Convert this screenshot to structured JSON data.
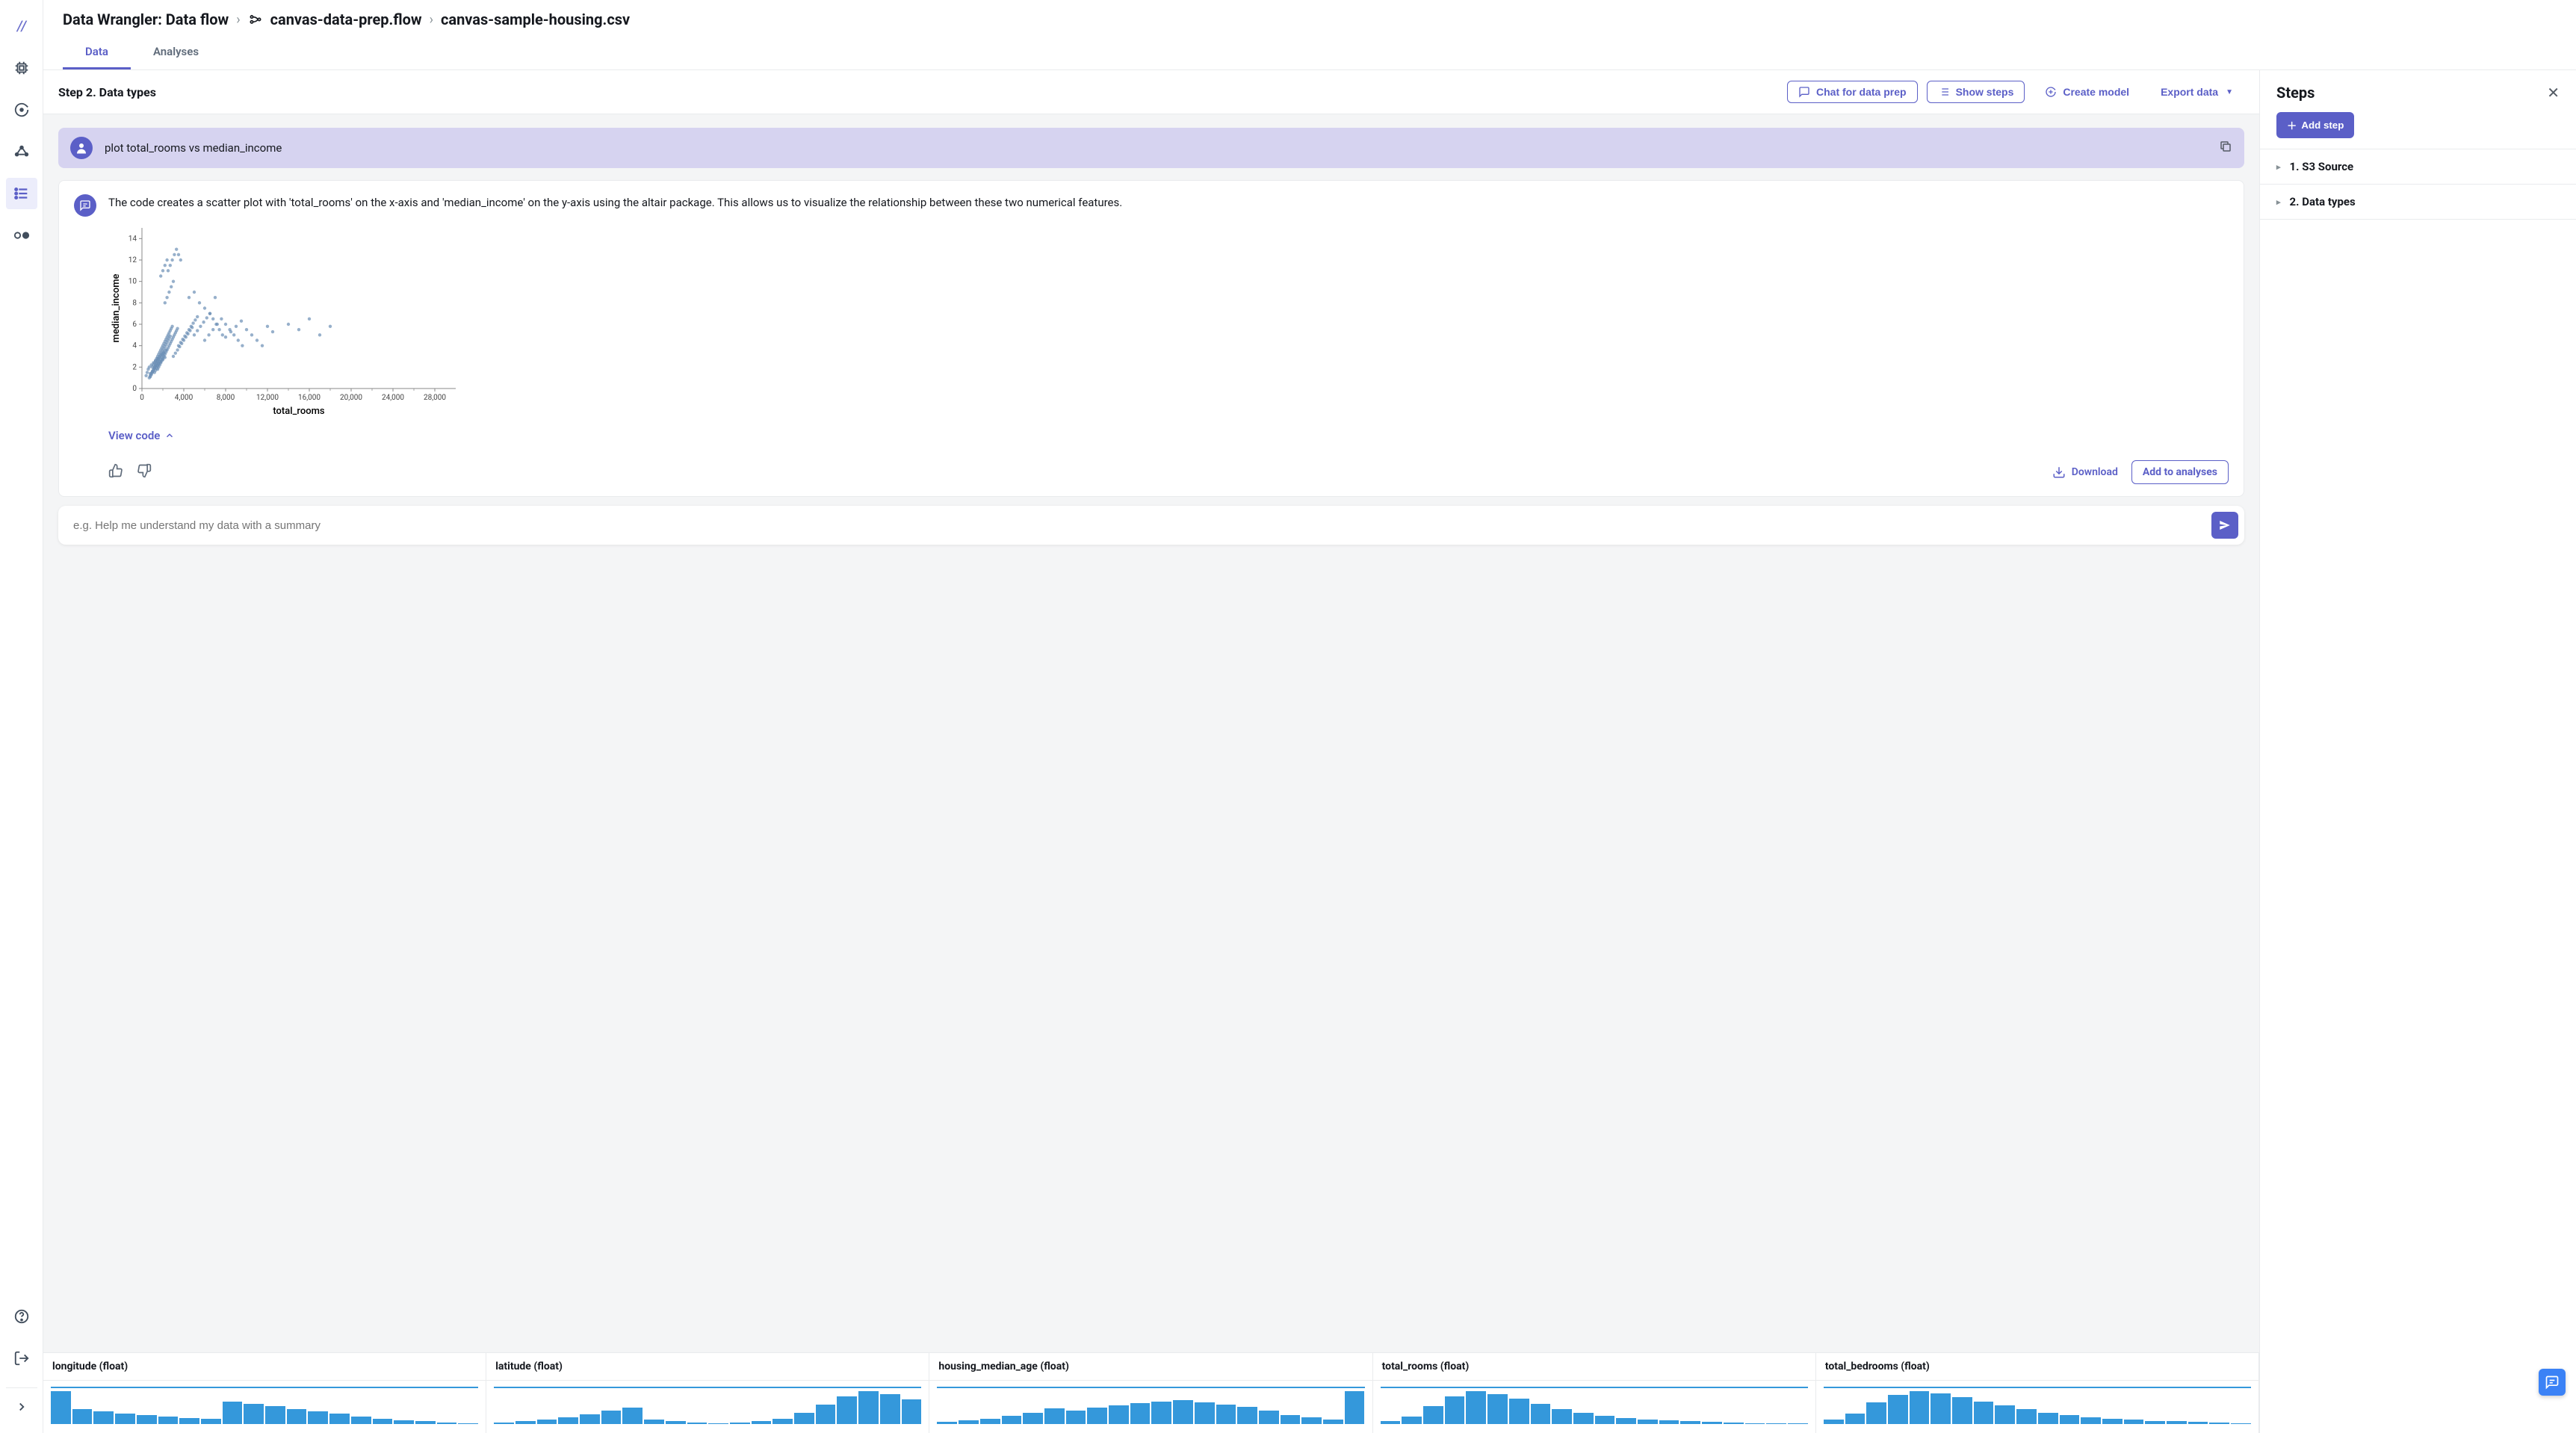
{
  "breadcrumb": {
    "root": "Data Wrangler: Data flow",
    "flow": "canvas-data-prep.flow",
    "file": "canvas-sample-housing.csv"
  },
  "tabs": {
    "data": "Data",
    "analyses": "Analyses"
  },
  "toolbar": {
    "step_title": "Step 2. Data types",
    "chat": "Chat for data prep",
    "show_steps": "Show steps",
    "create_model": "Create model",
    "export": "Export data"
  },
  "chat": {
    "user_msg": "plot total_rooms vs median_income",
    "assistant_msg": "The code creates a scatter plot with 'total_rooms' on the x-axis and 'median_income' on the y-axis using the altair package. This allows us to visualize the relationship between these two numerical features.",
    "view_code": "View code",
    "download": "Download",
    "add_to_analyses": "Add to analyses",
    "placeholder": "e.g. Help me understand my data with a summary"
  },
  "scatter_chart": {
    "type": "scatter",
    "xlabel": "total_rooms",
    "ylabel": "median_income",
    "xlim": [
      0,
      30000
    ],
    "ylim": [
      0,
      15
    ],
    "xticks": [
      0,
      4000,
      8000,
      12000,
      16000,
      20000,
      24000,
      28000
    ],
    "yticks": [
      0,
      2,
      4,
      6,
      8,
      10,
      12,
      14
    ],
    "point_color": "#6b8fb5",
    "point_opacity": 0.7,
    "point_radius": 2.2,
    "background": "#ffffff",
    "points": [
      [
        400,
        1.2
      ],
      [
        500,
        1.5
      ],
      [
        600,
        1.8
      ],
      [
        700,
        2.0
      ],
      [
        800,
        1.4
      ],
      [
        900,
        2.2
      ],
      [
        1000,
        1.6
      ],
      [
        1100,
        2.4
      ],
      [
        1200,
        1.9
      ],
      [
        1300,
        2.6
      ],
      [
        1400,
        2.1
      ],
      [
        1500,
        2.8
      ],
      [
        1600,
        2.3
      ],
      [
        1700,
        3.0
      ],
      [
        1800,
        2.5
      ],
      [
        1900,
        3.2
      ],
      [
        2000,
        2.7
      ],
      [
        2100,
        3.4
      ],
      [
        2200,
        2.9
      ],
      [
        2300,
        3.6
      ],
      [
        800,
        1.1
      ],
      [
        900,
        1.3
      ],
      [
        1000,
        1.5
      ],
      [
        1100,
        1.7
      ],
      [
        1200,
        1.9
      ],
      [
        1300,
        2.1
      ],
      [
        1400,
        2.3
      ],
      [
        1500,
        2.5
      ],
      [
        1600,
        2.7
      ],
      [
        1700,
        2.9
      ],
      [
        1800,
        3.1
      ],
      [
        1900,
        3.3
      ],
      [
        2000,
        3.5
      ],
      [
        2100,
        3.7
      ],
      [
        2200,
        3.9
      ],
      [
        2300,
        4.1
      ],
      [
        2400,
        4.3
      ],
      [
        2500,
        4.5
      ],
      [
        2600,
        4.7
      ],
      [
        2700,
        4.9
      ],
      [
        1000,
        2.0
      ],
      [
        1100,
        2.2
      ],
      [
        1200,
        2.4
      ],
      [
        1300,
        2.6
      ],
      [
        1400,
        2.8
      ],
      [
        1500,
        3.0
      ],
      [
        1600,
        3.2
      ],
      [
        1700,
        3.4
      ],
      [
        1800,
        3.6
      ],
      [
        1900,
        3.8
      ],
      [
        2000,
        4.0
      ],
      [
        2100,
        4.2
      ],
      [
        2200,
        4.4
      ],
      [
        2300,
        4.6
      ],
      [
        2400,
        4.8
      ],
      [
        2500,
        5.0
      ],
      [
        2600,
        5.2
      ],
      [
        2700,
        5.4
      ],
      [
        2800,
        5.6
      ],
      [
        2900,
        5.8
      ],
      [
        700,
        1.0
      ],
      [
        800,
        1.2
      ],
      [
        900,
        1.4
      ],
      [
        1000,
        1.6
      ],
      [
        1100,
        1.8
      ],
      [
        1200,
        2.0
      ],
      [
        1300,
        2.2
      ],
      [
        1400,
        2.4
      ],
      [
        1500,
        2.6
      ],
      [
        1600,
        2.8
      ],
      [
        1200,
        1.5
      ],
      [
        1300,
        1.7
      ],
      [
        1400,
        1.9
      ],
      [
        1500,
        2.1
      ],
      [
        1600,
        2.3
      ],
      [
        1700,
        2.5
      ],
      [
        1800,
        2.7
      ],
      [
        1900,
        2.9
      ],
      [
        2000,
        3.1
      ],
      [
        2100,
        3.3
      ],
      [
        1500,
        1.8
      ],
      [
        1600,
        2.0
      ],
      [
        1700,
        2.2
      ],
      [
        1800,
        2.4
      ],
      [
        1900,
        2.6
      ],
      [
        2000,
        2.8
      ],
      [
        2100,
        3.0
      ],
      [
        2200,
        3.2
      ],
      [
        2300,
        3.4
      ],
      [
        2400,
        3.6
      ],
      [
        2500,
        3.8
      ],
      [
        2600,
        4.0
      ],
      [
        2700,
        4.2
      ],
      [
        2800,
        4.4
      ],
      [
        2900,
        4.6
      ],
      [
        3000,
        4.8
      ],
      [
        3100,
        5.0
      ],
      [
        3200,
        5.2
      ],
      [
        3300,
        5.4
      ],
      [
        3400,
        5.6
      ],
      [
        3000,
        3.0
      ],
      [
        3200,
        3.3
      ],
      [
        3400,
        3.6
      ],
      [
        3600,
        3.9
      ],
      [
        3800,
        4.2
      ],
      [
        4000,
        4.5
      ],
      [
        4200,
        4.8
      ],
      [
        4400,
        5.1
      ],
      [
        4600,
        5.4
      ],
      [
        4800,
        5.7
      ],
      [
        3500,
        4.0
      ],
      [
        3700,
        4.3
      ],
      [
        3900,
        4.6
      ],
      [
        4100,
        4.9
      ],
      [
        4300,
        5.2
      ],
      [
        4500,
        5.5
      ],
      [
        4700,
        5.8
      ],
      [
        4900,
        6.1
      ],
      [
        5100,
        6.4
      ],
      [
        5300,
        6.7
      ],
      [
        5000,
        5.0
      ],
      [
        5300,
        5.4
      ],
      [
        5600,
        5.8
      ],
      [
        5900,
        6.2
      ],
      [
        6200,
        6.6
      ],
      [
        6500,
        7.0
      ],
      [
        6800,
        6.5
      ],
      [
        7100,
        6.0
      ],
      [
        7400,
        5.5
      ],
      [
        7700,
        5.0
      ],
      [
        6000,
        4.5
      ],
      [
        6400,
        5.0
      ],
      [
        6800,
        5.5
      ],
      [
        7200,
        6.0
      ],
      [
        7600,
        6.5
      ],
      [
        8000,
        6.0
      ],
      [
        8400,
        5.5
      ],
      [
        8800,
        5.0
      ],
      [
        9200,
        4.5
      ],
      [
        9600,
        4.0
      ],
      [
        8000,
        4.8
      ],
      [
        8500,
        5.3
      ],
      [
        9000,
        5.8
      ],
      [
        9500,
        6.3
      ],
      [
        10000,
        5.5
      ],
      [
        10500,
        5.0
      ],
      [
        11000,
        4.5
      ],
      [
        11500,
        4.0
      ],
      [
        12000,
        5.8
      ],
      [
        12500,
        5.3
      ],
      [
        2200,
        8.0
      ],
      [
        2400,
        8.5
      ],
      [
        2600,
        9.0
      ],
      [
        2800,
        9.5
      ],
      [
        3000,
        10.0
      ],
      [
        2500,
        11.0
      ],
      [
        2700,
        11.5
      ],
      [
        2900,
        12.0
      ],
      [
        3100,
        12.5
      ],
      [
        3300,
        13.0
      ],
      [
        1800,
        10.5
      ],
      [
        2000,
        11.0
      ],
      [
        2200,
        11.5
      ],
      [
        2400,
        12.0
      ],
      [
        3500,
        12.5
      ],
      [
        3700,
        12.0
      ],
      [
        4500,
        8.5
      ],
      [
        5000,
        9.0
      ],
      [
        5500,
        8.0
      ],
      [
        6000,
        7.5
      ],
      [
        6500,
        7.0
      ],
      [
        7000,
        8.5
      ],
      [
        14000,
        6.0
      ],
      [
        15000,
        5.5
      ],
      [
        16000,
        6.5
      ],
      [
        17000,
        5.0
      ],
      [
        18000,
        5.8
      ]
    ]
  },
  "columns": [
    {
      "name": "longitude (float)",
      "hist": [
        65,
        30,
        25,
        20,
        18,
        15,
        12,
        10,
        45,
        40,
        35,
        30,
        25,
        20,
        15,
        10,
        8,
        5,
        3,
        2
      ]
    },
    {
      "name": "latitude (float)",
      "hist": [
        3,
        5,
        8,
        12,
        18,
        25,
        30,
        8,
        5,
        3,
        2,
        3,
        5,
        10,
        20,
        35,
        50,
        60,
        55,
        45
      ]
    },
    {
      "name": "housing_median_age (float)",
      "hist": [
        5,
        8,
        12,
        18,
        25,
        35,
        30,
        38,
        42,
        48,
        52,
        55,
        50,
        45,
        40,
        30,
        20,
        15,
        10,
        75
      ]
    },
    {
      "name": "total_rooms (float)",
      "hist": [
        5,
        15,
        35,
        55,
        65,
        60,
        50,
        40,
        30,
        22,
        16,
        12,
        9,
        7,
        5,
        4,
        3,
        2,
        2,
        1
      ]
    },
    {
      "name": "total_bedrooms (float)",
      "hist": [
        8,
        20,
        40,
        55,
        62,
        58,
        50,
        42,
        35,
        28,
        22,
        17,
        13,
        10,
        8,
        6,
        5,
        4,
        3,
        2
      ]
    }
  ],
  "hist_color": "#3498db",
  "right_panel": {
    "title": "Steps",
    "add_step": "Add step",
    "steps": [
      "1. S3 Source",
      "2. Data types"
    ]
  }
}
